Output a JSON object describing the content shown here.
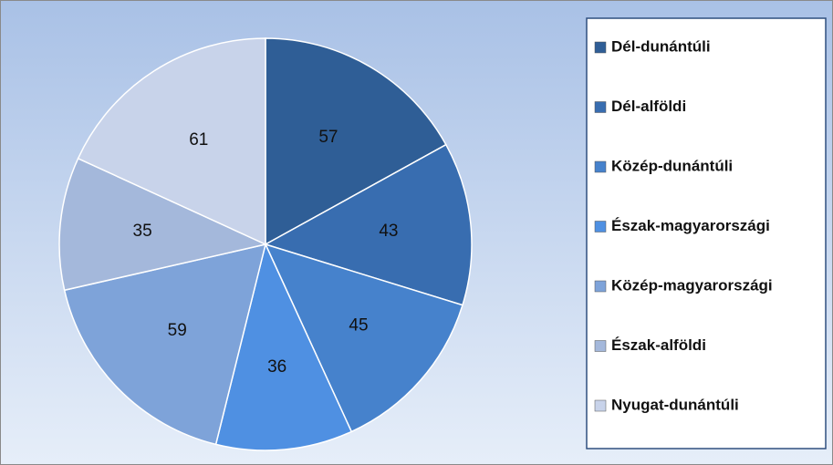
{
  "chart_data": {
    "type": "pie",
    "categories": [
      "Dél-dunántúli",
      "Dél-alföldi",
      "Közép-dunántúli",
      "Észak-magyarországi",
      "Közép-magyarországi",
      "Észak-alföldi",
      "Nyugat-dunántúli"
    ],
    "values": [
      57,
      43,
      45,
      36,
      59,
      35,
      61
    ],
    "colors": [
      "#2f5e96",
      "#386db0",
      "#4682cc",
      "#4f90e2",
      "#7ea3d9",
      "#a4b8db",
      "#c8d3ea"
    ],
    "legend": "right"
  }
}
